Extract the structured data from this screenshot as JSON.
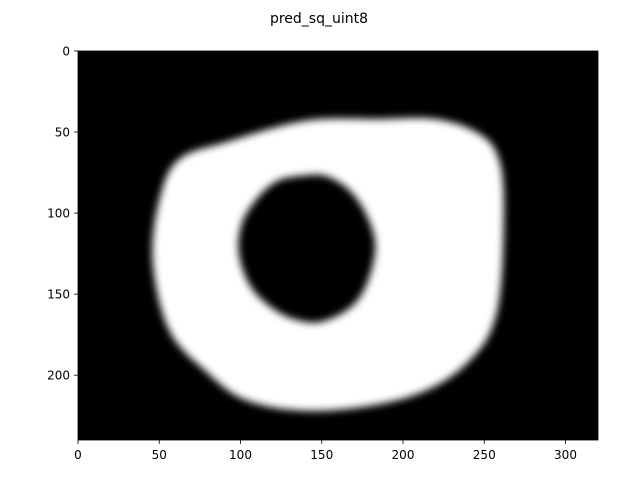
{
  "chart_data": {
    "type": "heatmap",
    "title": "pred_sq_uint8",
    "xlabel": "",
    "ylabel": "",
    "xlim": [
      0,
      320
    ],
    "ylim": [
      240,
      0
    ],
    "x_ticks": [
      "0",
      "50",
      "100",
      "150",
      "200",
      "250",
      "300"
    ],
    "y_ticks": [
      "0",
      "50",
      "100",
      "150",
      "200"
    ],
    "colormap": "gray",
    "grid": false,
    "legend": "none",
    "background_color": "#000000",
    "foreground_color": "#ffffff",
    "outer_blob_outline": [
      [
        140,
        43
      ],
      [
        185,
        42
      ],
      [
        220,
        42
      ],
      [
        245,
        50
      ],
      [
        258,
        64
      ],
      [
        262,
        95
      ],
      [
        258,
        160
      ],
      [
        240,
        192
      ],
      [
        205,
        213
      ],
      [
        150,
        222
      ],
      [
        105,
        216
      ],
      [
        78,
        197
      ],
      [
        56,
        172
      ],
      [
        46,
        130
      ],
      [
        50,
        92
      ],
      [
        62,
        67
      ],
      [
        92,
        56
      ]
    ],
    "inner_hole_outline": [
      [
        138,
        77
      ],
      [
        152,
        77
      ],
      [
        166,
        85
      ],
      [
        177,
        100
      ],
      [
        183,
        120
      ],
      [
        178,
        143
      ],
      [
        168,
        158
      ],
      [
        150,
        167
      ],
      [
        135,
        166
      ],
      [
        120,
        159
      ],
      [
        106,
        145
      ],
      [
        99,
        125
      ],
      [
        101,
        106
      ],
      [
        111,
        90
      ],
      [
        123,
        80
      ]
    ]
  }
}
